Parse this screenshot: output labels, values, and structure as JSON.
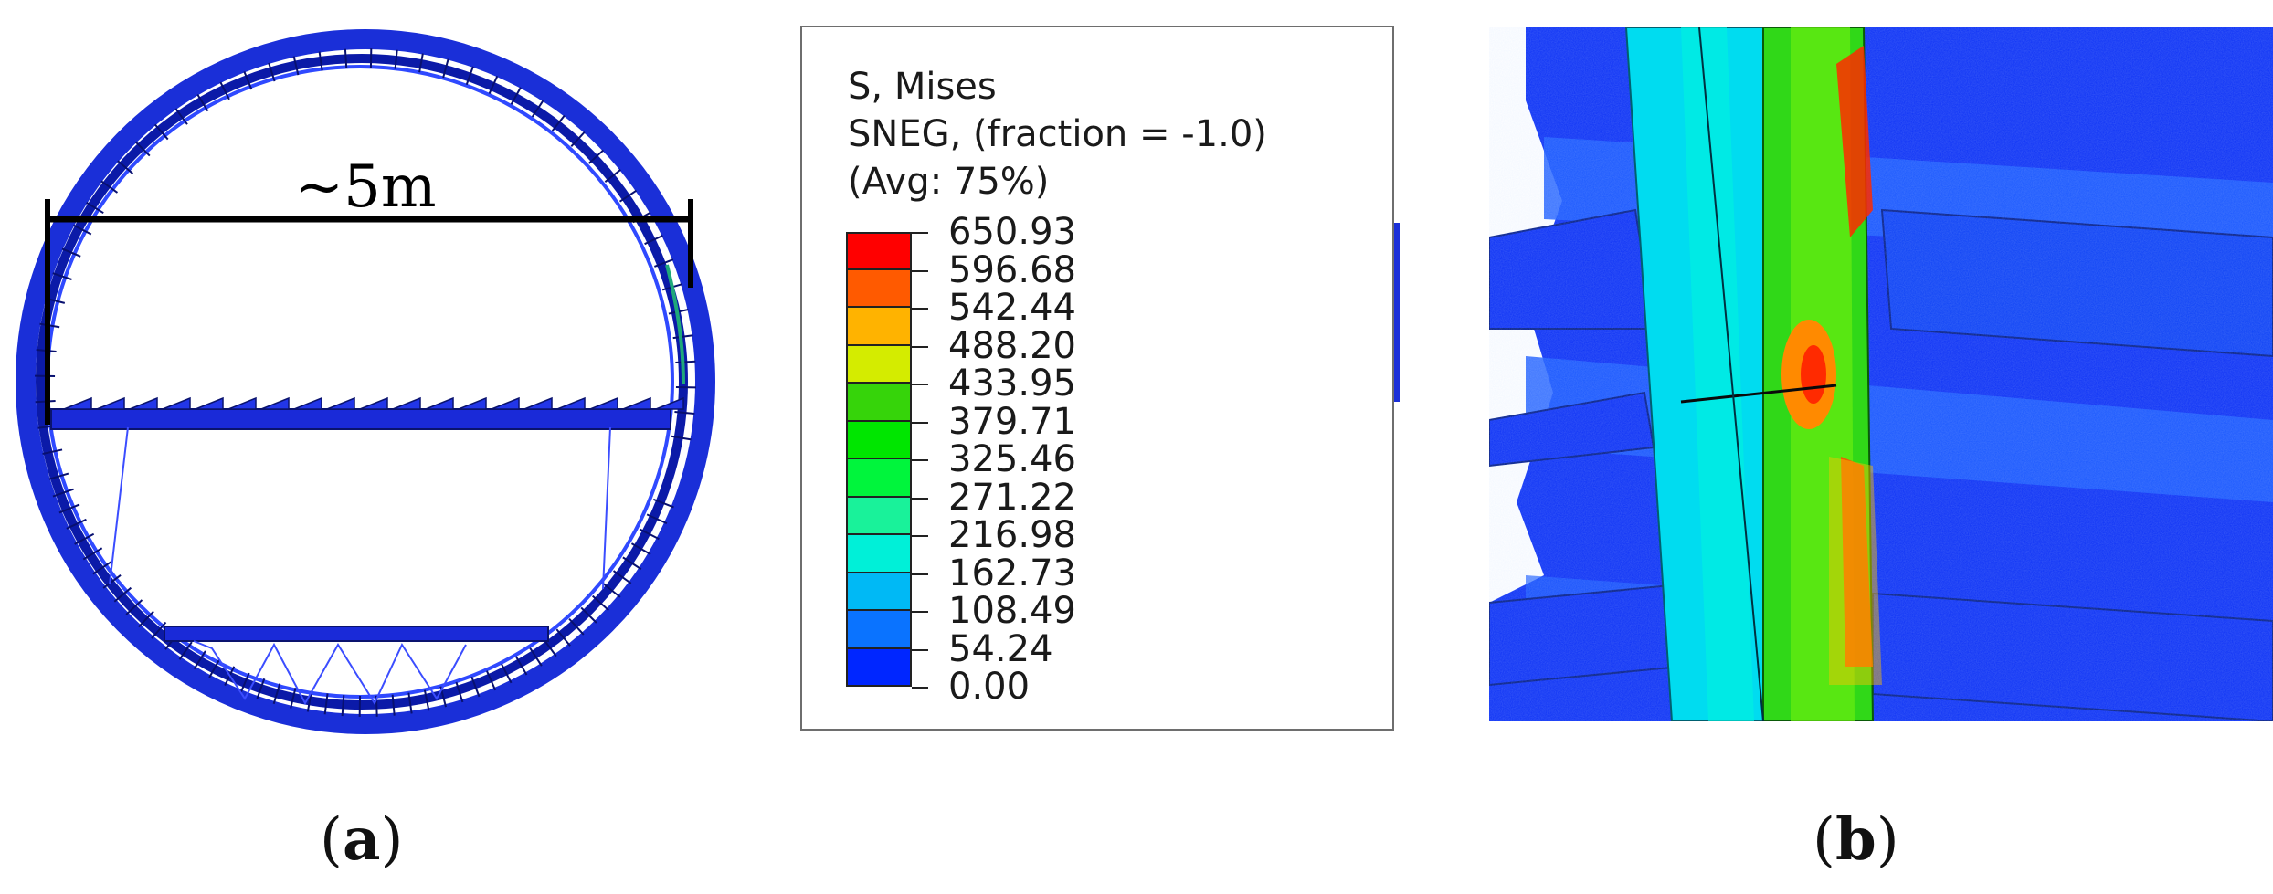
{
  "panel_a": {
    "dimension_label": "~5m",
    "caption_open": "(",
    "caption_letter": "a",
    "caption_close": ")"
  },
  "legend": {
    "title_line1": "S, Mises",
    "title_line2": "SNEG, (fraction = -1.0)",
    "title_line3": "(Avg: 75%)",
    "values": [
      "650.93",
      "596.68",
      "542.44",
      "488.20",
      "433.95",
      "379.71",
      "325.46",
      "271.22",
      "216.98",
      "162.73",
      "108.49",
      "54.24",
      "0.00"
    ],
    "colors": [
      "#ff0000",
      "#ff5a00",
      "#ffb300",
      "#d4ec00",
      "#36d40a",
      "#00e600",
      "#00f53c",
      "#19f29a",
      "#00f0d8",
      "#00b9f5",
      "#0a73ff",
      "#0026ff"
    ]
  },
  "panel_b": {
    "caption_open": "(",
    "caption_letter": "b",
    "caption_close": ")"
  }
}
